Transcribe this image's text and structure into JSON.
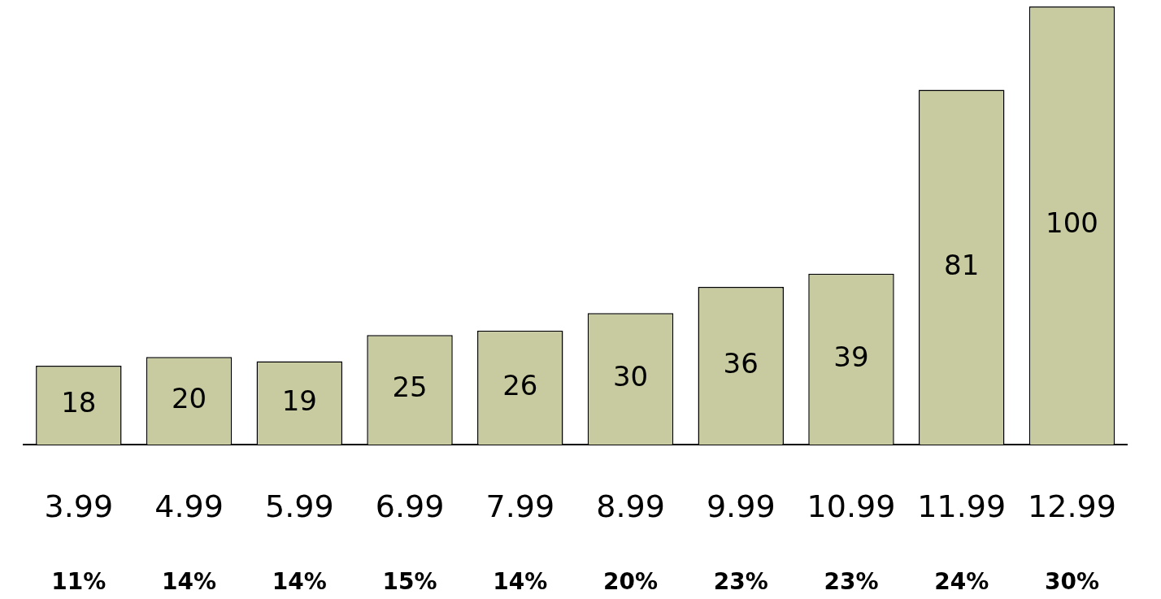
{
  "chart_data": {
    "type": "bar",
    "categories": [
      "3.99",
      "4.99",
      "5.99",
      "6.99",
      "7.99",
      "8.99",
      "9.99",
      "10.99",
      "11.99",
      "12.99"
    ],
    "values": [
      18,
      20,
      19,
      25,
      26,
      30,
      36,
      39,
      81,
      100
    ],
    "color": "#c8cba0",
    "data_labels": true,
    "tick_labels": "x",
    "annotations": [
      "11%",
      "14%",
      "14%",
      "15%",
      "14%",
      "20%",
      "23%",
      "23%",
      "24%",
      "30%"
    ]
  }
}
